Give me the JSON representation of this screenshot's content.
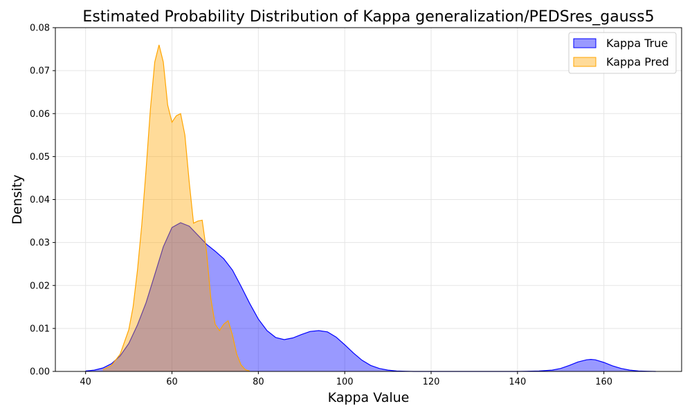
{
  "chart_data": {
    "type": "area",
    "title": "Estimated Probability Distribution of Kappa generalization/PEDSres_gauss5",
    "xlabel": "Kappa Value",
    "ylabel": "Density",
    "xlim": [
      33,
      178
    ],
    "ylim": [
      0,
      0.08
    ],
    "xticks": [
      40,
      60,
      80,
      100,
      120,
      140,
      160
    ],
    "yticks": [
      0.0,
      0.01,
      0.02,
      0.03,
      0.04,
      0.05,
      0.06,
      0.07,
      0.08
    ],
    "ytick_labels": [
      "0.00",
      "0.01",
      "0.02",
      "0.03",
      "0.04",
      "0.05",
      "0.06",
      "0.07",
      "0.08"
    ],
    "grid": true,
    "legend": "top-right",
    "series": [
      {
        "name": "Kappa True",
        "color": "#0000ff",
        "fill": "#9999ff",
        "x": [
          40,
          42,
          44,
          46,
          48,
          50,
          52,
          54,
          56,
          58,
          60,
          62,
          64,
          66,
          68,
          70,
          72,
          74,
          76,
          78,
          80,
          82,
          84,
          86,
          88,
          90,
          92,
          94,
          96,
          98,
          100,
          102,
          104,
          106,
          108,
          110,
          112,
          114,
          116,
          120,
          130,
          140,
          145,
          148,
          150,
          152,
          154,
          156,
          157,
          158,
          160,
          162,
          164,
          166,
          168,
          170,
          172
        ],
        "values": [
          0.0001,
          0.0003,
          0.0008,
          0.0018,
          0.0036,
          0.0065,
          0.0108,
          0.016,
          0.0225,
          0.029,
          0.0335,
          0.0346,
          0.0338,
          0.0317,
          0.0296,
          0.028,
          0.0262,
          0.0236,
          0.0198,
          0.0158,
          0.0122,
          0.0095,
          0.0079,
          0.0074,
          0.0078,
          0.0086,
          0.0093,
          0.0095,
          0.0092,
          0.008,
          0.0062,
          0.0043,
          0.0026,
          0.0014,
          0.0007,
          0.0003,
          0.0001,
          5e-05,
          0.0,
          0.0,
          0.0,
          0.0,
          0.0001,
          0.0003,
          0.0007,
          0.0014,
          0.0022,
          0.0027,
          0.0028,
          0.0027,
          0.0021,
          0.0013,
          0.0007,
          0.0003,
          0.0001,
          5e-05,
          0.0
        ]
      },
      {
        "name": "Kappa Pred",
        "color": "#ffa500",
        "fill": "#ffd78f",
        "x": [
          44,
          46,
          48,
          50,
          51,
          52,
          53,
          54,
          55,
          56,
          57,
          58,
          59,
          60,
          61,
          62,
          63,
          64,
          65,
          66,
          67,
          68,
          69,
          70,
          71,
          72,
          73,
          74,
          75,
          76,
          77,
          78
        ],
        "values": [
          0.0004,
          0.0014,
          0.004,
          0.0097,
          0.015,
          0.0235,
          0.034,
          0.047,
          0.061,
          0.072,
          0.076,
          0.072,
          0.062,
          0.058,
          0.0595,
          0.06,
          0.055,
          0.044,
          0.0345,
          0.035,
          0.0352,
          0.028,
          0.017,
          0.011,
          0.0095,
          0.011,
          0.0118,
          0.0085,
          0.004,
          0.0015,
          0.0004,
          0.0001
        ]
      }
    ]
  }
}
